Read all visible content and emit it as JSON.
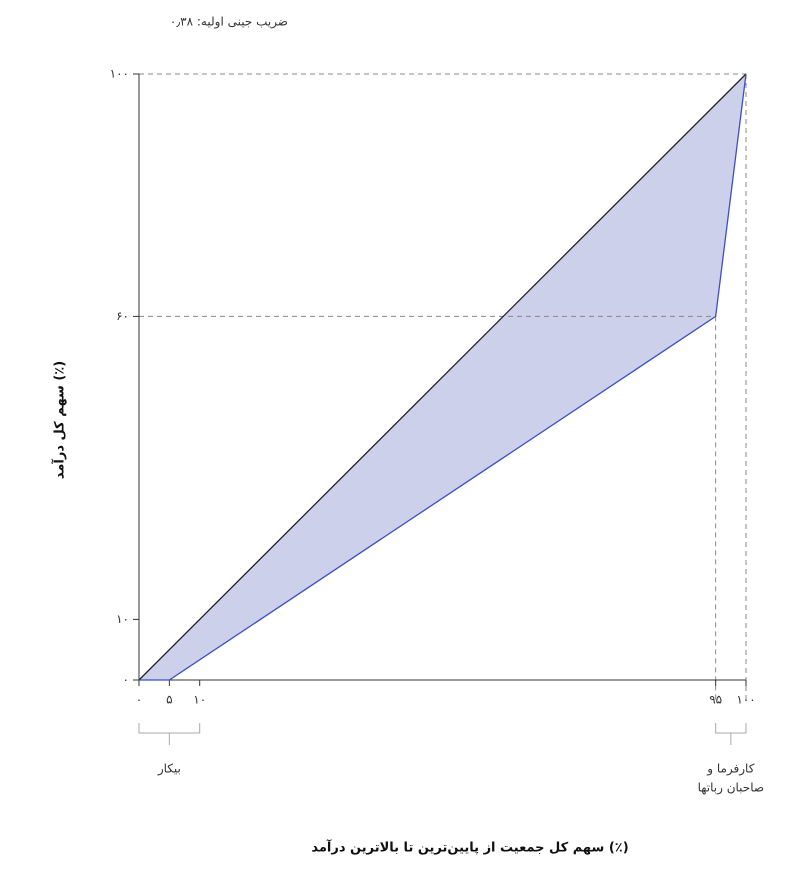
{
  "chart_data": {
    "type": "line",
    "annotation": "ضریب جینی اولیه: ۰٫۳۸",
    "ylabel": "سهم کل درآمد (٪)",
    "xlabel": "سهم کل جمعیت از پایین‌ترین تا بالاترین درآمد (٪)",
    "fill": "#cdd0ea",
    "series": [
      {
        "color": "#222222",
        "x": [
          0,
          100
        ],
        "values": [
          0,
          100
        ]
      },
      {
        "color": "#3a4fc1",
        "x": [
          0,
          5,
          95,
          100
        ],
        "values": [
          0,
          0,
          60,
          100
        ]
      }
    ],
    "xlim": [
      0,
      100
    ],
    "ylim": [
      0,
      100
    ],
    "xticks": [
      {
        "value": 0,
        "label": "۰"
      },
      {
        "value": 5,
        "label": "۵"
      },
      {
        "value": 10,
        "label": "۱۰"
      },
      {
        "value": 95,
        "label": "۹۵"
      },
      {
        "value": 100,
        "label": "۱۰۰"
      }
    ],
    "yticks": [
      {
        "value": 0,
        "label": "۰"
      },
      {
        "value": 10,
        "label": "۱۰"
      },
      {
        "value": 60,
        "label": "۶۰"
      },
      {
        "value": 100,
        "label": "۱۰۰"
      }
    ],
    "brackets": [
      {
        "range": [
          0,
          10
        ],
        "label": [
          "بیکار"
        ]
      },
      {
        "range": [
          95,
          100
        ],
        "label": [
          "کارفرما و",
          "صاحبان رباتها"
        ]
      }
    ]
  }
}
